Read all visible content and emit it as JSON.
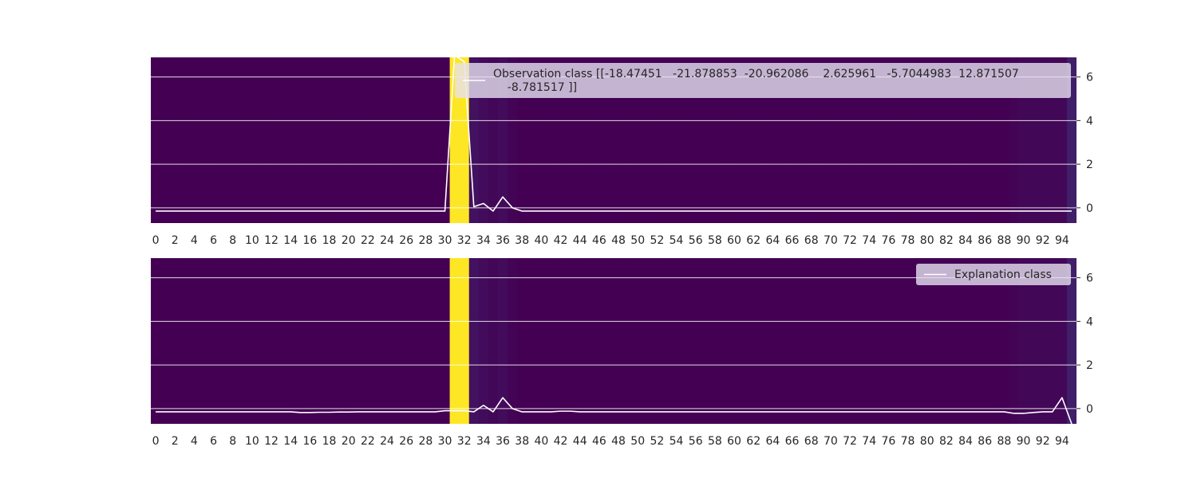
{
  "chart_data": [
    {
      "type": "line",
      "panel": "top",
      "x": [
        0,
        1,
        2,
        3,
        4,
        5,
        6,
        7,
        8,
        9,
        10,
        11,
        12,
        13,
        14,
        15,
        16,
        17,
        18,
        19,
        20,
        21,
        22,
        23,
        24,
        25,
        26,
        27,
        28,
        29,
        30,
        31,
        32,
        33,
        34,
        35,
        36,
        37,
        38,
        39,
        40,
        41,
        42,
        43,
        44,
        45,
        46,
        47,
        48,
        49,
        50,
        51,
        52,
        53,
        54,
        55,
        56,
        57,
        58,
        59,
        60,
        61,
        62,
        63,
        64,
        65,
        66,
        67,
        68,
        69,
        70,
        71,
        72,
        73,
        74,
        75,
        76,
        77,
        78,
        79,
        80,
        81,
        82,
        83,
        84,
        85,
        86,
        87,
        88,
        89,
        90,
        91,
        92,
        93,
        94,
        95
      ],
      "series": [
        {
          "name": "Observation class [[-18.47451   -21.878853  -20.962086    2.625961   -5.7044983  12.871507\n    -8.781517 ]]",
          "values": [
            -0.15,
            -0.15,
            -0.15,
            -0.15,
            -0.15,
            -0.15,
            -0.15,
            -0.15,
            -0.15,
            -0.15,
            -0.15,
            -0.15,
            -0.15,
            -0.15,
            -0.15,
            -0.15,
            -0.15,
            -0.15,
            -0.15,
            -0.15,
            -0.15,
            -0.15,
            -0.15,
            -0.15,
            -0.15,
            -0.15,
            -0.15,
            -0.15,
            -0.15,
            -0.15,
            -0.15,
            7.0,
            6.7,
            0.05,
            0.2,
            -0.15,
            0.5,
            0.0,
            -0.15,
            -0.15,
            -0.15,
            -0.15,
            -0.15,
            -0.15,
            -0.15,
            -0.15,
            -0.15,
            -0.15,
            -0.15,
            -0.15,
            -0.15,
            -0.15,
            -0.15,
            -0.15,
            -0.15,
            -0.15,
            -0.15,
            -0.15,
            -0.15,
            -0.15,
            -0.15,
            -0.15,
            -0.15,
            -0.15,
            -0.15,
            -0.15,
            -0.15,
            -0.15,
            -0.15,
            -0.15,
            -0.15,
            -0.15,
            -0.15,
            -0.15,
            -0.15,
            -0.15,
            -0.15,
            -0.15,
            -0.15,
            -0.15,
            -0.15,
            -0.15,
            -0.15,
            -0.15,
            -0.15,
            -0.15,
            -0.15,
            -0.15,
            -0.15,
            -0.15,
            -0.15,
            -0.15,
            -0.15,
            -0.15,
            -0.15,
            -0.15
          ]
        }
      ],
      "heatmap": {
        "colormap": "viridis",
        "values": [
          0,
          0,
          0,
          0,
          0,
          0,
          0,
          0,
          0,
          0,
          0,
          0,
          0,
          0,
          0,
          0,
          0,
          0,
          0,
          0,
          0,
          0,
          0,
          0,
          0,
          0,
          0,
          0,
          0,
          0,
          0,
          1,
          1,
          0.05,
          0.03,
          0.02,
          0.03,
          0.01,
          0,
          0,
          0,
          0,
          0,
          0,
          0,
          0,
          0,
          0,
          0,
          0,
          0,
          0,
          0,
          0,
          0,
          0,
          0,
          0,
          0,
          0,
          0,
          0,
          0,
          0,
          0,
          0,
          0,
          0,
          0,
          0,
          0,
          0,
          0,
          0,
          0,
          0,
          0,
          0,
          0,
          0,
          0,
          0,
          0,
          0,
          0,
          0,
          0,
          0,
          0,
          0.01,
          0.02,
          0.02,
          0.02,
          0.02,
          0.02,
          0.09
        ]
      },
      "xticks": [
        "0",
        "2",
        "4",
        "6",
        "8",
        "10",
        "12",
        "14",
        "16",
        "18",
        "20",
        "22",
        "24",
        "26",
        "28",
        "30",
        "32",
        "34",
        "36",
        "38",
        "40",
        "42",
        "44",
        "46",
        "48",
        "50",
        "52",
        "54",
        "56",
        "58",
        "60",
        "62",
        "64",
        "66",
        "68",
        "70",
        "72",
        "74",
        "76",
        "78",
        "80",
        "82",
        "84",
        "86",
        "88",
        "90",
        "92",
        "94"
      ],
      "yticks": [
        0,
        2,
        4,
        6
      ],
      "xlim": [
        -0.5,
        95.5
      ],
      "ylim": [
        -0.7,
        6.9
      ],
      "grid": true,
      "y_axis_side": "right",
      "legend_position": "top-right",
      "title": "",
      "xlabel": "",
      "ylabel": ""
    },
    {
      "type": "line",
      "panel": "bottom",
      "x": [
        0,
        1,
        2,
        3,
        4,
        5,
        6,
        7,
        8,
        9,
        10,
        11,
        12,
        13,
        14,
        15,
        16,
        17,
        18,
        19,
        20,
        21,
        22,
        23,
        24,
        25,
        26,
        27,
        28,
        29,
        30,
        31,
        32,
        33,
        34,
        35,
        36,
        37,
        38,
        39,
        40,
        41,
        42,
        43,
        44,
        45,
        46,
        47,
        48,
        49,
        50,
        51,
        52,
        53,
        54,
        55,
        56,
        57,
        58,
        59,
        60,
        61,
        62,
        63,
        64,
        65,
        66,
        67,
        68,
        69,
        70,
        71,
        72,
        73,
        74,
        75,
        76,
        77,
        78,
        79,
        80,
        81,
        82,
        83,
        84,
        85,
        86,
        87,
        88,
        89,
        90,
        91,
        92,
        93,
        94,
        95
      ],
      "series": [
        {
          "name": "Explanation class",
          "values": [
            -0.15,
            -0.15,
            -0.15,
            -0.15,
            -0.15,
            -0.15,
            -0.15,
            -0.15,
            -0.15,
            -0.15,
            -0.15,
            -0.15,
            -0.15,
            -0.15,
            -0.15,
            -0.18,
            -0.18,
            -0.17,
            -0.17,
            -0.16,
            -0.16,
            -0.15,
            -0.15,
            -0.15,
            -0.15,
            -0.15,
            -0.15,
            -0.15,
            -0.15,
            -0.15,
            -0.1,
            -0.1,
            -0.1,
            -0.15,
            0.15,
            -0.15,
            0.5,
            0.0,
            -0.15,
            -0.15,
            -0.15,
            -0.15,
            -0.12,
            -0.12,
            -0.15,
            -0.15,
            -0.15,
            -0.15,
            -0.15,
            -0.15,
            -0.15,
            -0.15,
            -0.15,
            -0.15,
            -0.15,
            -0.15,
            -0.15,
            -0.15,
            -0.15,
            -0.15,
            -0.15,
            -0.15,
            -0.15,
            -0.15,
            -0.15,
            -0.15,
            -0.15,
            -0.15,
            -0.15,
            -0.15,
            -0.15,
            -0.15,
            -0.15,
            -0.15,
            -0.15,
            -0.15,
            -0.15,
            -0.15,
            -0.15,
            -0.15,
            -0.15,
            -0.15,
            -0.15,
            -0.15,
            -0.15,
            -0.15,
            -0.15,
            -0.15,
            -0.15,
            -0.22,
            -0.22,
            -0.18,
            -0.15,
            -0.15,
            0.5,
            -0.7
          ]
        }
      ],
      "heatmap": {
        "colormap": "viridis",
        "values": [
          0,
          0,
          0,
          0,
          0,
          0,
          0,
          0,
          0,
          0,
          0,
          0,
          0,
          0,
          0,
          0,
          0,
          0,
          0,
          0,
          0,
          0,
          0,
          0,
          0,
          0,
          0,
          0,
          0,
          0,
          0,
          1,
          1,
          0.05,
          0.03,
          0.02,
          0.03,
          0.01,
          0,
          0,
          0,
          0,
          0,
          0,
          0,
          0,
          0,
          0,
          0,
          0,
          0,
          0,
          0,
          0,
          0,
          0,
          0,
          0,
          0,
          0,
          0,
          0,
          0,
          0,
          0,
          0,
          0,
          0,
          0,
          0,
          0,
          0,
          0,
          0,
          0,
          0,
          0,
          0,
          0,
          0,
          0,
          0,
          0,
          0,
          0,
          0,
          0,
          0,
          0,
          0.01,
          0.02,
          0.02,
          0.02,
          0.02,
          0.02,
          0.09
        ]
      },
      "xticks": [
        "0",
        "2",
        "4",
        "6",
        "8",
        "10",
        "12",
        "14",
        "16",
        "18",
        "20",
        "22",
        "24",
        "26",
        "28",
        "30",
        "32",
        "34",
        "36",
        "38",
        "40",
        "42",
        "44",
        "46",
        "48",
        "50",
        "52",
        "54",
        "56",
        "58",
        "60",
        "62",
        "64",
        "66",
        "68",
        "70",
        "72",
        "74",
        "76",
        "78",
        "80",
        "82",
        "84",
        "86",
        "88",
        "90",
        "92",
        "94"
      ],
      "yticks": [
        0,
        2,
        4,
        6
      ],
      "xlim": [
        -0.5,
        95.5
      ],
      "ylim": [
        -0.7,
        6.9
      ],
      "grid": true,
      "y_axis_side": "right",
      "legend_position": "top-right",
      "title": "",
      "xlabel": "",
      "ylabel": ""
    }
  ],
  "colors": {
    "line": "#ffffff",
    "grid": "#ffffff",
    "legend_bg": "#e6e1f0",
    "text": "#262626",
    "viridis_low": "#440154",
    "viridis_high": "#fde725"
  }
}
